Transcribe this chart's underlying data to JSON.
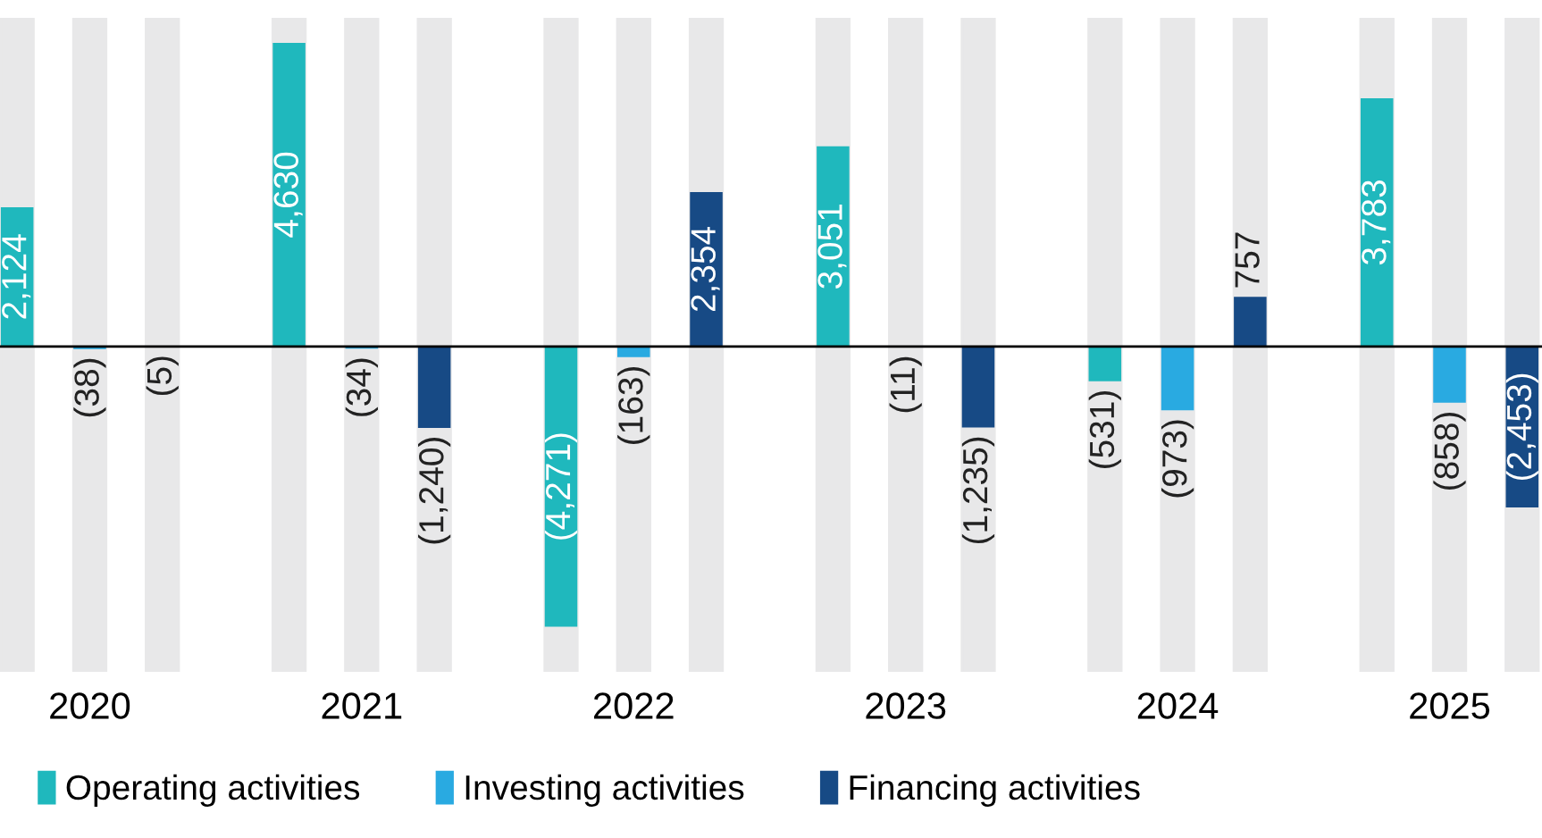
{
  "chart_data": {
    "type": "bar",
    "categories": [
      "2020",
      "2021",
      "2022",
      "2023",
      "2024",
      "2025"
    ],
    "series": [
      {
        "name": "Operating activities",
        "color": "#1fb8bd",
        "values": [
          2124,
          4630,
          -4271,
          3051,
          -531,
          3783
        ],
        "value_labels": [
          "2,124",
          "4,630",
          "(4,271)",
          "3,051",
          "(531)",
          "3,783"
        ]
      },
      {
        "name": "Investing activities",
        "color": "#29aae1",
        "values": [
          -38,
          -34,
          -163,
          -11,
          -973,
          -858
        ],
        "value_labels": [
          "(38)",
          "(34)",
          "(163)",
          "(11)",
          "(973)",
          "(858)"
        ]
      },
      {
        "name": "Financing activities",
        "color": "#174a85",
        "values": [
          -5,
          -1240,
          2354,
          -1235,
          757,
          -2453
        ],
        "value_labels": [
          "(5)",
          "(1,240)",
          "2,354",
          "(1,235)",
          "757",
          "(2,453)"
        ]
      }
    ],
    "ylim": [
      -4960,
      5010
    ],
    "tick_labels": "x",
    "legend": "bottom left",
    "grid": false
  }
}
